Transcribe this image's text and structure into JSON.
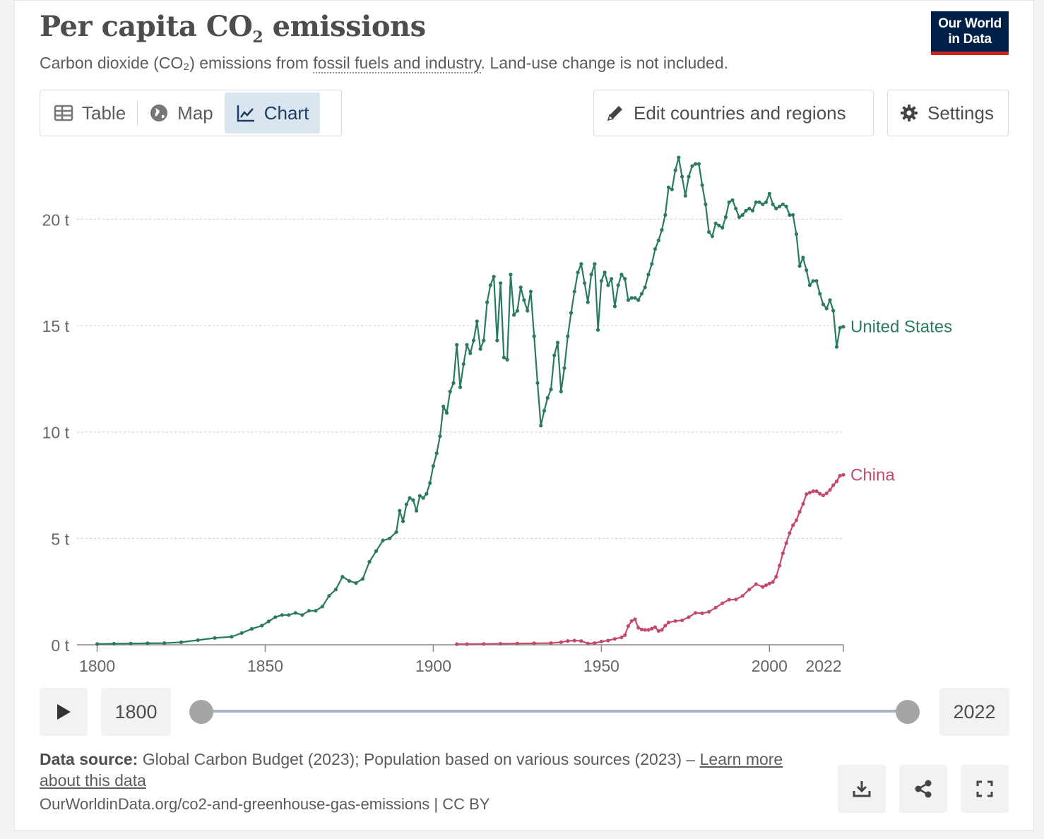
{
  "header": {
    "title_main": "Per capita CO",
    "title_sub": "2",
    "title_rest": " emissions",
    "subtitle_pre": "Carbon dioxide (CO₂) emissions from ",
    "subtitle_link": "fossil fuels and industry",
    "subtitle_post": ". Land-use change is not included.",
    "logo_line1": "Our World",
    "logo_line2": "in Data"
  },
  "tabs": [
    {
      "label": "Table",
      "icon": "table-icon"
    },
    {
      "label": "Map",
      "icon": "globe-icon"
    },
    {
      "label": "Chart",
      "icon": "line-chart-icon",
      "active": true
    }
  ],
  "toolbar": {
    "edit_label": "Edit countries and regions",
    "settings_label": "Settings"
  },
  "colors": {
    "us": "#2a7a5d",
    "china": "#c44a6a",
    "grid": "#cccccc",
    "axis": "#888888"
  },
  "chart_data": {
    "type": "line",
    "title": "Per capita CO₂ emissions",
    "xlabel": "",
    "ylabel": "",
    "xlim": [
      1794,
      2022
    ],
    "ylim": [
      0,
      23
    ],
    "y_ticks": [
      {
        "value": 0,
        "label": "0 t"
      },
      {
        "value": 5,
        "label": "5 t"
      },
      {
        "value": 10,
        "label": "10 t"
      },
      {
        "value": 15,
        "label": "15 t"
      },
      {
        "value": 20,
        "label": "20 t"
      }
    ],
    "x_ticks": [
      {
        "value": 1800,
        "label": "1800"
      },
      {
        "value": 1850,
        "label": "1850"
      },
      {
        "value": 1900,
        "label": "1900"
      },
      {
        "value": 1950,
        "label": "1950"
      },
      {
        "value": 2000,
        "label": "2000"
      },
      {
        "value": 2022,
        "label": "2022"
      }
    ],
    "grid": "horizontal dashed",
    "series": [
      {
        "name": "United States",
        "color": "#2a7a5d",
        "points": [
          [
            1800,
            0.04
          ],
          [
            1805,
            0.05
          ],
          [
            1810,
            0.06
          ],
          [
            1815,
            0.07
          ],
          [
            1820,
            0.08
          ],
          [
            1825,
            0.12
          ],
          [
            1830,
            0.22
          ],
          [
            1835,
            0.32
          ],
          [
            1840,
            0.38
          ],
          [
            1843,
            0.55
          ],
          [
            1846,
            0.75
          ],
          [
            1849,
            0.9
          ],
          [
            1851,
            1.1
          ],
          [
            1853,
            1.3
          ],
          [
            1855,
            1.4
          ],
          [
            1857,
            1.4
          ],
          [
            1859,
            1.5
          ],
          [
            1861,
            1.4
          ],
          [
            1863,
            1.6
          ],
          [
            1865,
            1.6
          ],
          [
            1867,
            1.8
          ],
          [
            1869,
            2.3
          ],
          [
            1871,
            2.6
          ],
          [
            1873,
            3.2
          ],
          [
            1875,
            3.0
          ],
          [
            1877,
            2.9
          ],
          [
            1879,
            3.1
          ],
          [
            1881,
            3.9
          ],
          [
            1883,
            4.4
          ],
          [
            1885,
            4.9
          ],
          [
            1887,
            5.0
          ],
          [
            1889,
            5.3
          ],
          [
            1890,
            6.3
          ],
          [
            1891,
            5.8
          ],
          [
            1892,
            6.6
          ],
          [
            1893,
            6.9
          ],
          [
            1894,
            6.8
          ],
          [
            1895,
            6.3
          ],
          [
            1896,
            7.0
          ],
          [
            1897,
            6.9
          ],
          [
            1898,
            7.1
          ],
          [
            1899,
            7.6
          ],
          [
            1900,
            8.4
          ],
          [
            1901,
            9.0
          ],
          [
            1902,
            9.8
          ],
          [
            1903,
            11.2
          ],
          [
            1904,
            10.9
          ],
          [
            1905,
            11.9
          ],
          [
            1906,
            12.3
          ],
          [
            1907,
            14.1
          ],
          [
            1908,
            12.1
          ],
          [
            1909,
            13.2
          ],
          [
            1910,
            14.1
          ],
          [
            1911,
            13.7
          ],
          [
            1912,
            14.3
          ],
          [
            1913,
            15.2
          ],
          [
            1914,
            13.9
          ],
          [
            1915,
            14.3
          ],
          [
            1916,
            16.1
          ],
          [
            1917,
            16.9
          ],
          [
            1918,
            17.3
          ],
          [
            1919,
            14.3
          ],
          [
            1920,
            17.0
          ],
          [
            1921,
            13.5
          ],
          [
            1922,
            13.4
          ],
          [
            1923,
            17.4
          ],
          [
            1924,
            15.5
          ],
          [
            1925,
            15.7
          ],
          [
            1926,
            16.8
          ],
          [
            1927,
            16.2
          ],
          [
            1928,
            15.7
          ],
          [
            1929,
            16.6
          ],
          [
            1930,
            14.5
          ],
          [
            1931,
            12.3
          ],
          [
            1932,
            10.3
          ],
          [
            1933,
            11.0
          ],
          [
            1934,
            11.6
          ],
          [
            1935,
            12.0
          ],
          [
            1936,
            13.6
          ],
          [
            1937,
            14.2
          ],
          [
            1938,
            11.9
          ],
          [
            1939,
            13.0
          ],
          [
            1940,
            14.5
          ],
          [
            1941,
            15.6
          ],
          [
            1942,
            16.6
          ],
          [
            1943,
            17.5
          ],
          [
            1944,
            17.9
          ],
          [
            1945,
            17.0
          ],
          [
            1946,
            16.1
          ],
          [
            1947,
            17.4
          ],
          [
            1948,
            17.9
          ],
          [
            1949,
            14.8
          ],
          [
            1950,
            17.1
          ],
          [
            1951,
            17.5
          ],
          [
            1952,
            16.9
          ],
          [
            1953,
            17.2
          ],
          [
            1954,
            15.9
          ],
          [
            1955,
            16.9
          ],
          [
            1956,
            17.4
          ],
          [
            1957,
            17.2
          ],
          [
            1958,
            16.2
          ],
          [
            1959,
            16.3
          ],
          [
            1960,
            16.3
          ],
          [
            1961,
            16.2
          ],
          [
            1962,
            16.5
          ],
          [
            1963,
            16.8
          ],
          [
            1964,
            17.4
          ],
          [
            1965,
            17.9
          ],
          [
            1966,
            18.6
          ],
          [
            1967,
            19.0
          ],
          [
            1968,
            19.5
          ],
          [
            1969,
            20.2
          ],
          [
            1970,
            21.5
          ],
          [
            1971,
            21.4
          ],
          [
            1972,
            22.3
          ],
          [
            1973,
            22.9
          ],
          [
            1974,
            22.0
          ],
          [
            1975,
            21.1
          ],
          [
            1976,
            22.0
          ],
          [
            1977,
            22.5
          ],
          [
            1978,
            22.6
          ],
          [
            1979,
            22.6
          ],
          [
            1980,
            21.6
          ],
          [
            1981,
            20.7
          ],
          [
            1982,
            19.4
          ],
          [
            1983,
            19.2
          ],
          [
            1984,
            19.8
          ],
          [
            1985,
            19.7
          ],
          [
            1986,
            19.6
          ],
          [
            1987,
            20.1
          ],
          [
            1988,
            20.8
          ],
          [
            1989,
            20.9
          ],
          [
            1990,
            20.5
          ],
          [
            1991,
            20.1
          ],
          [
            1992,
            20.2
          ],
          [
            1993,
            20.4
          ],
          [
            1994,
            20.5
          ],
          [
            1995,
            20.4
          ],
          [
            1996,
            20.8
          ],
          [
            1997,
            20.8
          ],
          [
            1998,
            20.7
          ],
          [
            1999,
            20.8
          ],
          [
            2000,
            21.2
          ],
          [
            2001,
            20.7
          ],
          [
            2002,
            20.5
          ],
          [
            2003,
            20.6
          ],
          [
            2004,
            20.7
          ],
          [
            2005,
            20.6
          ],
          [
            2006,
            20.2
          ],
          [
            2007,
            20.2
          ],
          [
            2008,
            19.3
          ],
          [
            2009,
            17.8
          ],
          [
            2010,
            18.2
          ],
          [
            2011,
            17.6
          ],
          [
            2012,
            16.9
          ],
          [
            2013,
            17.1
          ],
          [
            2014,
            17.1
          ],
          [
            2015,
            16.5
          ],
          [
            2016,
            16.0
          ],
          [
            2017,
            15.8
          ],
          [
            2018,
            16.2
          ],
          [
            2019,
            15.7
          ],
          [
            2020,
            14.0
          ],
          [
            2021,
            14.9
          ],
          [
            2022,
            14.95
          ]
        ]
      },
      {
        "name": "China",
        "color": "#c44a6a",
        "points": [
          [
            1907,
            0.03
          ],
          [
            1910,
            0.03
          ],
          [
            1915,
            0.04
          ],
          [
            1920,
            0.05
          ],
          [
            1925,
            0.06
          ],
          [
            1930,
            0.07
          ],
          [
            1935,
            0.08
          ],
          [
            1938,
            0.12
          ],
          [
            1940,
            0.18
          ],
          [
            1942,
            0.2
          ],
          [
            1944,
            0.18
          ],
          [
            1946,
            0.06
          ],
          [
            1948,
            0.08
          ],
          [
            1950,
            0.15
          ],
          [
            1952,
            0.2
          ],
          [
            1954,
            0.28
          ],
          [
            1956,
            0.35
          ],
          [
            1957,
            0.45
          ],
          [
            1958,
            0.88
          ],
          [
            1959,
            1.12
          ],
          [
            1960,
            1.2
          ],
          [
            1961,
            0.8
          ],
          [
            1962,
            0.72
          ],
          [
            1963,
            0.7
          ],
          [
            1964,
            0.7
          ],
          [
            1965,
            0.76
          ],
          [
            1966,
            0.83
          ],
          [
            1967,
            0.65
          ],
          [
            1968,
            0.7
          ],
          [
            1969,
            0.9
          ],
          [
            1970,
            1.05
          ],
          [
            1972,
            1.12
          ],
          [
            1974,
            1.15
          ],
          [
            1976,
            1.3
          ],
          [
            1978,
            1.5
          ],
          [
            1980,
            1.48
          ],
          [
            1982,
            1.55
          ],
          [
            1984,
            1.75
          ],
          [
            1986,
            1.95
          ],
          [
            1988,
            2.12
          ],
          [
            1990,
            2.13
          ],
          [
            1992,
            2.3
          ],
          [
            1994,
            2.6
          ],
          [
            1996,
            2.85
          ],
          [
            1998,
            2.72
          ],
          [
            1999,
            2.8
          ],
          [
            2000,
            2.88
          ],
          [
            2001,
            2.95
          ],
          [
            2002,
            3.2
          ],
          [
            2003,
            3.72
          ],
          [
            2004,
            4.3
          ],
          [
            2005,
            4.78
          ],
          [
            2006,
            5.25
          ],
          [
            2007,
            5.62
          ],
          [
            2008,
            5.85
          ],
          [
            2009,
            6.25
          ],
          [
            2010,
            6.62
          ],
          [
            2011,
            7.08
          ],
          [
            2012,
            7.15
          ],
          [
            2013,
            7.22
          ],
          [
            2014,
            7.22
          ],
          [
            2015,
            7.1
          ],
          [
            2016,
            7.02
          ],
          [
            2017,
            7.12
          ],
          [
            2018,
            7.28
          ],
          [
            2019,
            7.5
          ],
          [
            2020,
            7.68
          ],
          [
            2021,
            7.95
          ],
          [
            2022,
            7.99
          ]
        ]
      }
    ]
  },
  "timeline": {
    "start_year": "1800",
    "end_year": "2022"
  },
  "footer": {
    "source_label": "Data source:",
    "source_text": " Global Carbon Budget (2023); Population based on various sources (2023) – ",
    "learn_more": "Learn more about this data",
    "url": "OurWorldinData.org/co2-and-greenhouse-gas-emissions | CC BY"
  }
}
